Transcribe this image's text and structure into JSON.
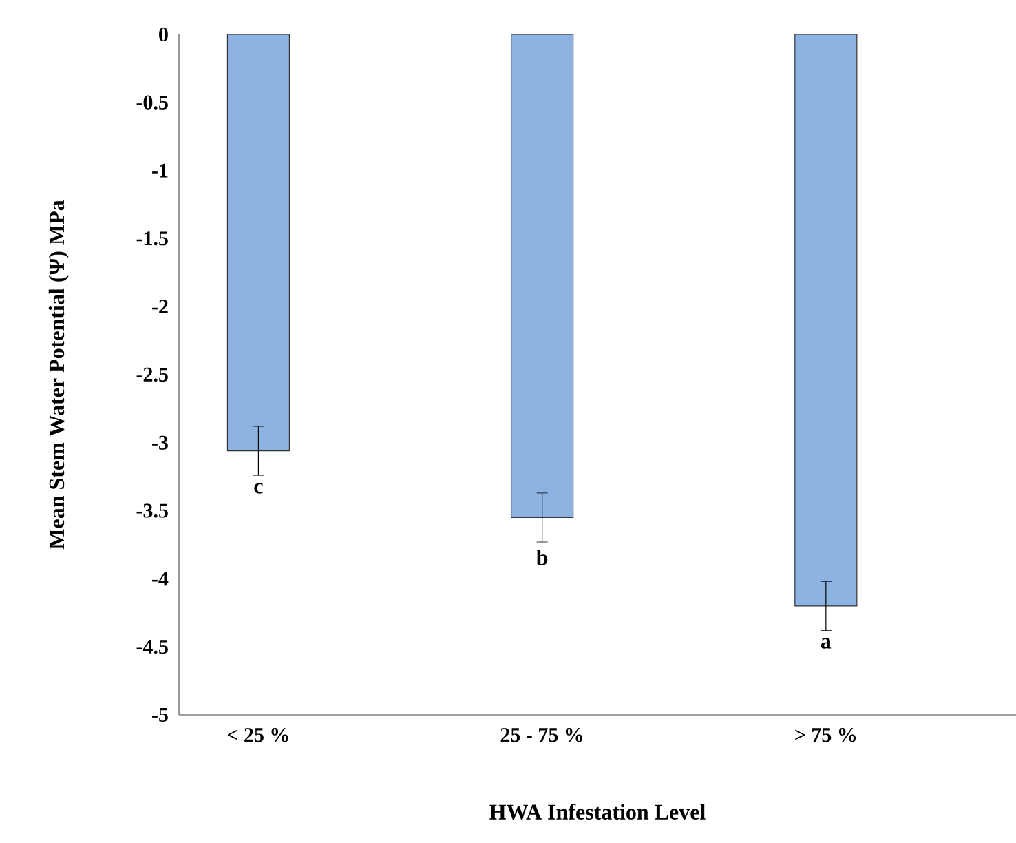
{
  "chart_data": {
    "type": "bar",
    "xlabel": "HWA Infestation Level",
    "ylabel": "Mean Stem Water  Potential (Ψ) MPa",
    "categories": [
      "< 25 %",
      "25 - 75 %",
      "> 75 %"
    ],
    "values": [
      -3.06,
      -3.55,
      -4.2
    ],
    "errors": [
      0.18,
      0.18,
      0.18
    ],
    "color": "#8db3e2",
    "ylim": [
      -5,
      0
    ],
    "yticks": [
      -5,
      -4.5,
      -4,
      -3.5,
      -3,
      -2.5,
      -2,
      -1.5,
      -1,
      -0.5,
      0
    ],
    "annotations": [
      "c",
      "b",
      "a"
    ],
    "grid": false
  }
}
